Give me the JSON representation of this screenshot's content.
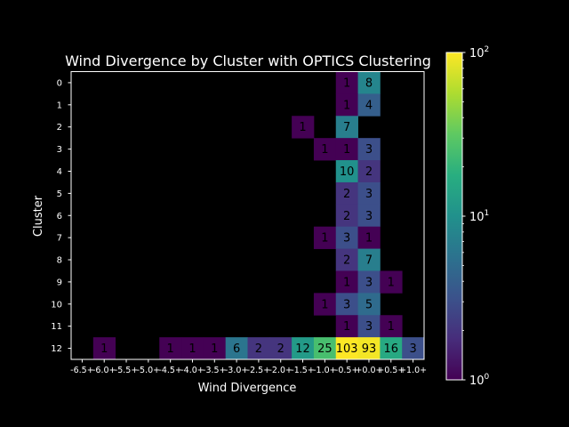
{
  "chart_data": {
    "type": "heatmap",
    "title": "Wind Divergence by Cluster with OPTICS Clustering",
    "xlabel": "Wind Divergence",
    "ylabel": "Cluster",
    "x_categories": [
      "-6.5+",
      "-6.0+",
      "-5.5+",
      "-5.0+",
      "-4.5+",
      "-4.0+",
      "-3.5+",
      "-3.0+",
      "-2.5+",
      "-2.0+",
      "-1.5+",
      "-1.0+",
      "-0.5+",
      "+0.0+",
      "+0.5+",
      "+1.0+"
    ],
    "y_categories": [
      "0",
      "1",
      "2",
      "3",
      "4",
      "5",
      "6",
      "7",
      "8",
      "9",
      "10",
      "11",
      "12"
    ],
    "color_scale": "log",
    "colormap": "viridis",
    "background_color": "#000000",
    "colorbar": {
      "min": 1,
      "max": 100,
      "tick_labels": [
        {
          "base": "10",
          "exp": "0",
          "value": 1
        },
        {
          "base": "10",
          "exp": "1",
          "value": 10
        },
        {
          "base": "10",
          "exp": "2",
          "value": 100
        }
      ]
    },
    "cells": [
      {
        "cluster": "0",
        "x": "-0.5+",
        "value": 1
      },
      {
        "cluster": "0",
        "x": "+0.0+",
        "value": 8
      },
      {
        "cluster": "1",
        "x": "-0.5+",
        "value": 1
      },
      {
        "cluster": "1",
        "x": "+0.0+",
        "value": 4
      },
      {
        "cluster": "2",
        "x": "-1.5+",
        "value": 1
      },
      {
        "cluster": "2",
        "x": "-0.5+",
        "value": 7
      },
      {
        "cluster": "3",
        "x": "-1.0+",
        "value": 1
      },
      {
        "cluster": "3",
        "x": "-0.5+",
        "value": 1
      },
      {
        "cluster": "3",
        "x": "+0.0+",
        "value": 3
      },
      {
        "cluster": "4",
        "x": "-0.5+",
        "value": 10
      },
      {
        "cluster": "4",
        "x": "+0.0+",
        "value": 2
      },
      {
        "cluster": "5",
        "x": "-0.5+",
        "value": 2
      },
      {
        "cluster": "5",
        "x": "+0.0+",
        "value": 3
      },
      {
        "cluster": "6",
        "x": "-0.5+",
        "value": 2
      },
      {
        "cluster": "6",
        "x": "+0.0+",
        "value": 3
      },
      {
        "cluster": "7",
        "x": "-1.0+",
        "value": 1
      },
      {
        "cluster": "7",
        "x": "-0.5+",
        "value": 3
      },
      {
        "cluster": "7",
        "x": "+0.0+",
        "value": 1
      },
      {
        "cluster": "8",
        "x": "-0.5+",
        "value": 2
      },
      {
        "cluster": "8",
        "x": "+0.0+",
        "value": 7
      },
      {
        "cluster": "9",
        "x": "-0.5+",
        "value": 1
      },
      {
        "cluster": "9",
        "x": "+0.0+",
        "value": 3
      },
      {
        "cluster": "9",
        "x": "+0.5+",
        "value": 1
      },
      {
        "cluster": "10",
        "x": "-1.0+",
        "value": 1
      },
      {
        "cluster": "10",
        "x": "-0.5+",
        "value": 3
      },
      {
        "cluster": "10",
        "x": "+0.0+",
        "value": 5
      },
      {
        "cluster": "11",
        "x": "-0.5+",
        "value": 1
      },
      {
        "cluster": "11",
        "x": "+0.0+",
        "value": 3
      },
      {
        "cluster": "11",
        "x": "+0.5+",
        "value": 1
      },
      {
        "cluster": "12",
        "x": "-6.0+",
        "value": 1
      },
      {
        "cluster": "12",
        "x": "-4.5+",
        "value": 1
      },
      {
        "cluster": "12",
        "x": "-4.0+",
        "value": 1
      },
      {
        "cluster": "12",
        "x": "-3.5+",
        "value": 1
      },
      {
        "cluster": "12",
        "x": "-3.0+",
        "value": 6
      },
      {
        "cluster": "12",
        "x": "-2.5+",
        "value": 2
      },
      {
        "cluster": "12",
        "x": "-2.0+",
        "value": 2
      },
      {
        "cluster": "12",
        "x": "-1.5+",
        "value": 12
      },
      {
        "cluster": "12",
        "x": "-1.0+",
        "value": 25
      },
      {
        "cluster": "12",
        "x": "-0.5+",
        "value": 103
      },
      {
        "cluster": "12",
        "x": "+0.0+",
        "value": 93
      },
      {
        "cluster": "12",
        "x": "+0.5+",
        "value": 16
      },
      {
        "cluster": "12",
        "x": "+1.0+",
        "value": 3
      }
    ]
  }
}
